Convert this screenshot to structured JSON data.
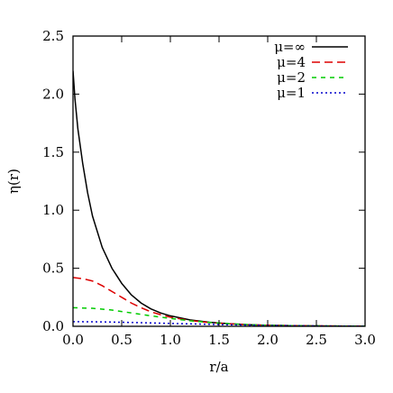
{
  "chart_data": {
    "type": "line",
    "xlabel": "r/a",
    "ylabel": "η(r)",
    "xlim": [
      0.0,
      3.0
    ],
    "ylim": [
      0.0,
      2.5
    ],
    "x_ticks": [
      "0.0",
      "0.5",
      "1.0",
      "1.5",
      "2.0",
      "2.5",
      "3.0"
    ],
    "y_ticks": [
      "0.0",
      "0.5",
      "1.0",
      "1.5",
      "2.0",
      "2.5"
    ],
    "grid": false,
    "legend_position": "top-right",
    "series": [
      {
        "name": "μ=∞",
        "color": "#000000",
        "dash": "solid",
        "x": [
          0.0,
          0.02,
          0.05,
          0.1,
          0.15,
          0.2,
          0.3,
          0.4,
          0.5,
          0.6,
          0.7,
          0.8,
          0.9,
          1.0,
          1.2,
          1.4,
          1.6,
          1.8,
          2.0,
          2.3,
          2.6,
          3.0
        ],
        "y": [
          2.2,
          1.96,
          1.7,
          1.4,
          1.15,
          0.95,
          0.68,
          0.5,
          0.37,
          0.27,
          0.2,
          0.15,
          0.115,
          0.09,
          0.055,
          0.035,
          0.022,
          0.014,
          0.009,
          0.005,
          0.003,
          0.001
        ]
      },
      {
        "name": "μ=4",
        "color": "#dd0000",
        "dash": "long-dash",
        "x": [
          0.0,
          0.1,
          0.2,
          0.3,
          0.4,
          0.5,
          0.6,
          0.7,
          0.8,
          0.9,
          1.0,
          1.2,
          1.4,
          1.6,
          1.8,
          2.0,
          2.3,
          2.6,
          3.0
        ],
        "y": [
          0.42,
          0.41,
          0.39,
          0.35,
          0.3,
          0.25,
          0.2,
          0.16,
          0.125,
          0.1,
          0.078,
          0.05,
          0.032,
          0.021,
          0.013,
          0.009,
          0.005,
          0.003,
          0.001
        ]
      },
      {
        "name": "μ=2",
        "color": "#00cc00",
        "dash": "short-dash",
        "x": [
          0.0,
          0.2,
          0.4,
          0.6,
          0.8,
          1.0,
          1.2,
          1.4,
          1.6,
          1.8,
          2.0,
          2.3,
          2.6,
          3.0
        ],
        "y": [
          0.16,
          0.155,
          0.14,
          0.115,
          0.09,
          0.068,
          0.048,
          0.033,
          0.022,
          0.014,
          0.009,
          0.005,
          0.003,
          0.001
        ]
      },
      {
        "name": "μ=1",
        "color": "#0000cc",
        "dash": "dotted",
        "x": [
          0.0,
          0.3,
          0.6,
          0.9,
          1.2,
          1.5,
          1.8,
          2.1,
          2.4,
          2.7,
          3.0
        ],
        "y": [
          0.04,
          0.038,
          0.033,
          0.027,
          0.021,
          0.015,
          0.01,
          0.006,
          0.004,
          0.002,
          0.001
        ]
      }
    ]
  }
}
